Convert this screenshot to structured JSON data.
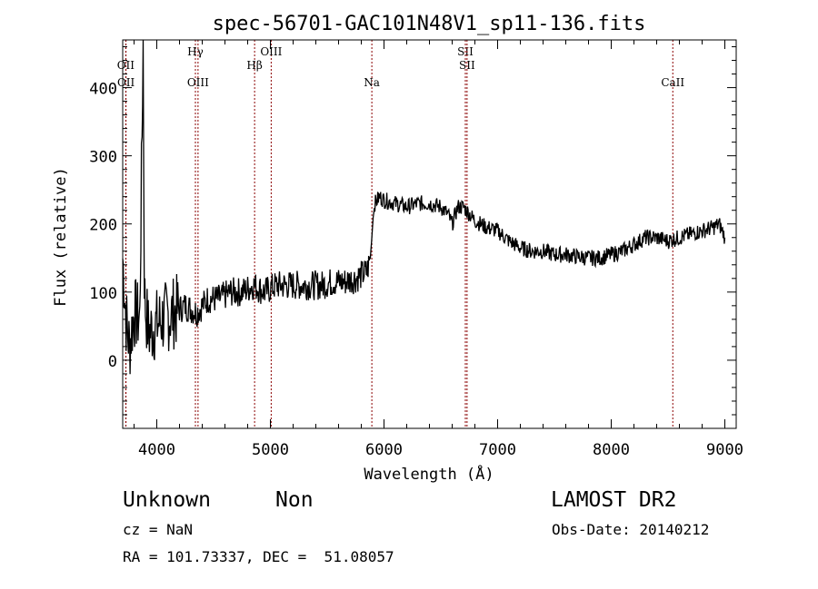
{
  "chart_data": {
    "type": "line",
    "title": "spec-56701-GAC101N48V1_sp11-136.fits",
    "xlabel": "Wavelength (Å)",
    "ylabel": "Flux (relative)",
    "xlim": [
      3700,
      9100
    ],
    "ylim": [
      -100,
      470
    ],
    "xticks": [
      4000,
      5000,
      6000,
      7000,
      8000,
      9000
    ],
    "yticks": [
      0,
      100,
      200,
      300,
      400
    ],
    "grid": false,
    "series": [
      {
        "x": [
          3700,
          3730,
          3760,
          3800,
          3850,
          3880,
          3890,
          3895,
          3905,
          3930,
          3980,
          4050,
          4150,
          4250,
          4350,
          4450,
          4550,
          4650,
          4750,
          4850,
          4950,
          5050,
          5150,
          5250,
          5350,
          5450,
          5550,
          5650,
          5750,
          5850,
          5880,
          5905,
          5920,
          5960,
          6000,
          6100,
          6200,
          6300,
          6400,
          6500,
          6560,
          6600,
          6650,
          6700,
          6750,
          6800,
          6900,
          7000,
          7100,
          7200,
          7300,
          7400,
          7500,
          7600,
          7700,
          7800,
          7900,
          8000,
          8100,
          8200,
          8300,
          8400,
          8500,
          8600,
          8700,
          8800,
          8900,
          8950,
          8990,
          9000
        ],
        "y": [
          150,
          60,
          20,
          70,
          60,
          470,
          90,
          90,
          70,
          40,
          50,
          60,
          70,
          80,
          70,
          90,
          90,
          100,
          100,
          110,
          100,
          110,
          110,
          110,
          110,
          110,
          115,
          115,
          120,
          130,
          150,
          210,
          230,
          240,
          235,
          230,
          225,
          230,
          230,
          225,
          215,
          200,
          225,
          225,
          215,
          205,
          195,
          190,
          175,
          165,
          160,
          160,
          155,
          155,
          152,
          150,
          150,
          155,
          160,
          170,
          180,
          180,
          175,
          180,
          185,
          190,
          195,
          200,
          185,
          180
        ]
      }
    ],
    "lines": [
      {
        "label": "OII",
        "x": 3727
      },
      {
        "label": "OII",
        "x": 3729
      },
      {
        "label": "Hγ",
        "x": 4340
      },
      {
        "label": "OIII",
        "x": 4363
      },
      {
        "label": "Hβ",
        "x": 4861
      },
      {
        "label": "OIII",
        "x": 5007
      },
      {
        "label": "Na",
        "x": 5893
      },
      {
        "label": "SII",
        "x": 6716
      },
      {
        "label": "SII",
        "x": 6731
      },
      {
        "label": "CaII",
        "x": 8542
      }
    ]
  },
  "info": {
    "class": "Unknown",
    "subclass": "Non",
    "survey": "LAMOST DR2",
    "cz": "cz = NaN",
    "obs_date": "Obs-Date: 20140212",
    "coords": "RA = 101.73337, DEC =  51.08057"
  }
}
